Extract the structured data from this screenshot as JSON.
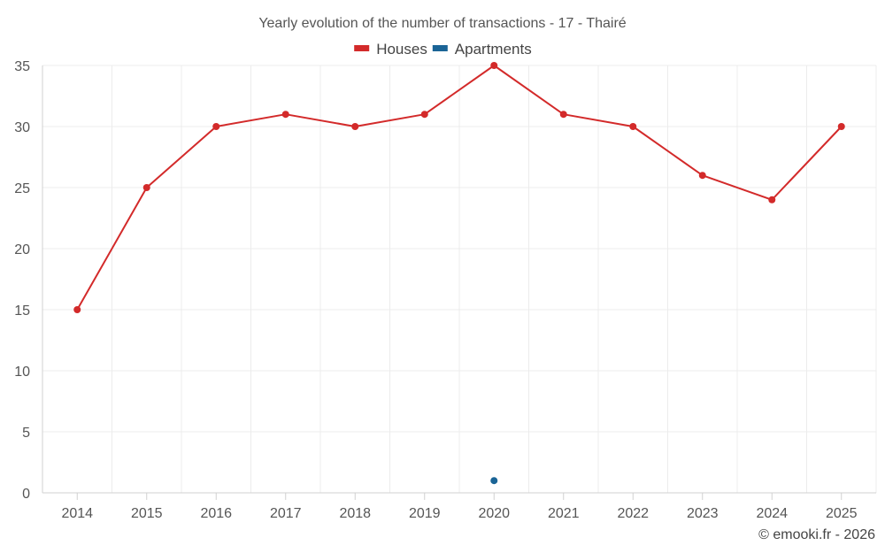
{
  "chart_data": {
    "type": "line",
    "title": "Yearly evolution of the number of transactions - 17 - Thairé",
    "categories": [
      "2014",
      "2015",
      "2016",
      "2017",
      "2018",
      "2019",
      "2020",
      "2021",
      "2022",
      "2023",
      "2024",
      "2025"
    ],
    "series": [
      {
        "name": "Houses",
        "color": "#d32a2a",
        "values": [
          15,
          25,
          30,
          31,
          30,
          31,
          35,
          31,
          30,
          26,
          24,
          30
        ]
      },
      {
        "name": "Apartments",
        "color": "#1a6496",
        "values": [
          null,
          null,
          null,
          null,
          null,
          null,
          1,
          null,
          null,
          null,
          null,
          null
        ]
      }
    ],
    "ylim": [
      0,
      35
    ],
    "yticks": [
      0,
      5,
      10,
      15,
      20,
      25,
      30,
      35
    ],
    "xlabel": "",
    "ylabel": "",
    "grid": true,
    "legend": "top-center"
  },
  "credit": "© emooki.fr - 2026"
}
